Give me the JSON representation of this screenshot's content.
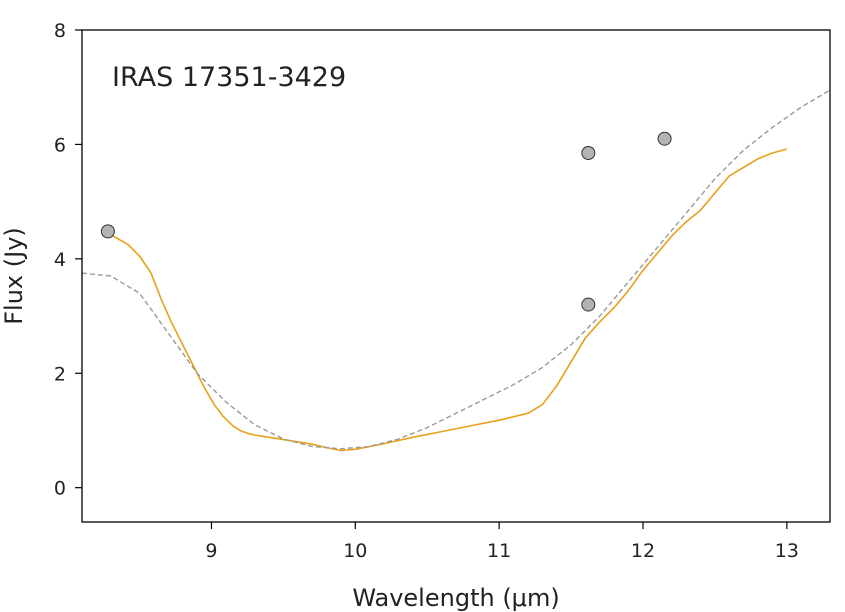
{
  "chart_data": {
    "type": "line",
    "annotation": "IRAS 17351-3429",
    "xlabel": "Wavelength (μm)",
    "ylabel": "Flux (Jy)",
    "xlim": [
      8.1,
      13.3
    ],
    "ylim": [
      -0.6,
      8.0
    ],
    "x_ticks": [
      9,
      10,
      11,
      12,
      13
    ],
    "y_ticks": [
      0,
      2,
      4,
      6,
      8
    ],
    "grid": false,
    "series": [
      {
        "style": "solid",
        "color": "#e8a019",
        "x": [
          8.28,
          8.35,
          8.42,
          8.5,
          8.58,
          8.65,
          8.72,
          8.8,
          8.88,
          8.95,
          9.02,
          9.08,
          9.15,
          9.2,
          9.25,
          9.3,
          9.4,
          9.5,
          9.6,
          9.7,
          9.8,
          9.9,
          10.0,
          10.2,
          10.4,
          10.6,
          10.8,
          11.0,
          11.2,
          11.3,
          11.4,
          11.5,
          11.6,
          11.7,
          11.8,
          11.9,
          12.0,
          12.1,
          12.2,
          12.3,
          12.4,
          12.5,
          12.6,
          12.7,
          12.8,
          12.9,
          13.0
        ],
        "y": [
          4.45,
          4.35,
          4.25,
          4.05,
          3.75,
          3.3,
          2.9,
          2.5,
          2.1,
          1.75,
          1.45,
          1.25,
          1.08,
          1.0,
          0.95,
          0.92,
          0.88,
          0.84,
          0.8,
          0.76,
          0.7,
          0.65,
          0.67,
          0.77,
          0.88,
          0.98,
          1.08,
          1.18,
          1.3,
          1.45,
          1.78,
          2.2,
          2.62,
          2.9,
          3.15,
          3.45,
          3.8,
          4.1,
          4.4,
          4.65,
          4.85,
          5.15,
          5.45,
          5.6,
          5.75,
          5.85,
          5.92
        ]
      },
      {
        "style": "dashed",
        "color": "#999999",
        "x": [
          8.1,
          8.3,
          8.5,
          8.7,
          8.9,
          9.1,
          9.3,
          9.5,
          9.7,
          9.9,
          10.1,
          10.3,
          10.5,
          10.7,
          10.9,
          11.1,
          11.3,
          11.5,
          11.7,
          11.9,
          12.1,
          12.3,
          12.5,
          12.7,
          12.9,
          13.1,
          13.3
        ],
        "y": [
          3.75,
          3.7,
          3.4,
          2.7,
          2.0,
          1.5,
          1.1,
          0.85,
          0.72,
          0.68,
          0.72,
          0.85,
          1.05,
          1.3,
          1.55,
          1.8,
          2.1,
          2.5,
          3.0,
          3.6,
          4.2,
          4.8,
          5.4,
          5.9,
          6.3,
          6.65,
          6.95
        ]
      }
    ],
    "points": {
      "color": "#b3b3b3",
      "x": [
        8.28,
        11.62,
        11.62,
        12.15
      ],
      "y": [
        4.48,
        5.85,
        3.2,
        6.1
      ]
    }
  }
}
